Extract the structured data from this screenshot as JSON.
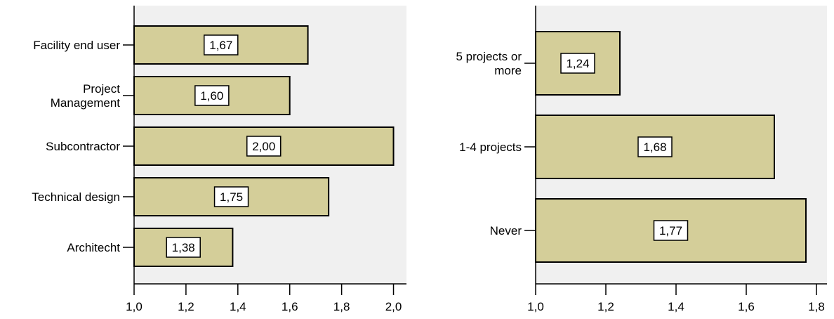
{
  "chart_data": [
    {
      "type": "bar",
      "orientation": "horizontal",
      "categories": [
        "Facility end user",
        "Project\nManagement",
        "Subcontractor",
        "Technical design",
        "Architecht"
      ],
      "values": [
        1.67,
        1.6,
        2.0,
        1.75,
        1.38
      ],
      "value_labels": [
        "1,67",
        "1,60",
        "2,00",
        "1,75",
        "1,38"
      ],
      "xlim": [
        1.0,
        2.05
      ],
      "xticks": [
        1.0,
        1.2,
        1.4,
        1.6,
        1.8,
        2.0
      ],
      "xtick_labels": [
        "1,0",
        "1,2",
        "1,4",
        "1,6",
        "1,8",
        "2,0"
      ],
      "grid": false,
      "colors": {
        "bar": "#d4ce99",
        "plot_bg": "#f0f0f0",
        "edge": "#000000"
      }
    },
    {
      "type": "bar",
      "orientation": "horizontal",
      "categories": [
        "5 projects or\nmore",
        "1-4 projects",
        "Never"
      ],
      "values": [
        1.24,
        1.68,
        1.77
      ],
      "value_labels": [
        "1,24",
        "1,68",
        "1,77"
      ],
      "xlim": [
        1.0,
        1.83
      ],
      "xticks": [
        1.0,
        1.2,
        1.4,
        1.6,
        1.8
      ],
      "xtick_labels": [
        "1,0",
        "1,2",
        "1,4",
        "1,6",
        "1,8"
      ],
      "grid": false,
      "colors": {
        "bar": "#d4ce99",
        "plot_bg": "#f0f0f0",
        "edge": "#000000"
      }
    }
  ]
}
